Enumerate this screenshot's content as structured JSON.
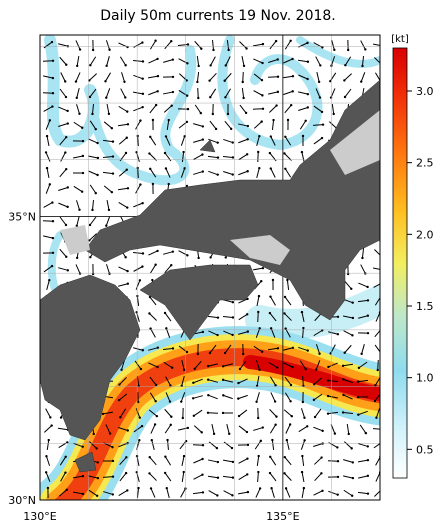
{
  "map": {
    "title": "Daily 50m currents 19 Nov. 2018.",
    "xlim": [
      130,
      137
    ],
    "ylim": [
      30,
      38.2
    ],
    "xticks": [
      {
        "value": 130,
        "label": "130°E"
      },
      {
        "value": 135,
        "label": "135°E"
      }
    ],
    "yticks": [
      {
        "value": 30,
        "label": "30°N"
      },
      {
        "value": 35,
        "label": "35°N"
      }
    ],
    "grid": true,
    "colorbar": {
      "unit": "[kt]",
      "lim": [
        0.3,
        3.3
      ],
      "ticks": [
        0.5,
        1.0,
        1.5,
        2.0,
        2.5,
        3.0
      ]
    }
  }
}
